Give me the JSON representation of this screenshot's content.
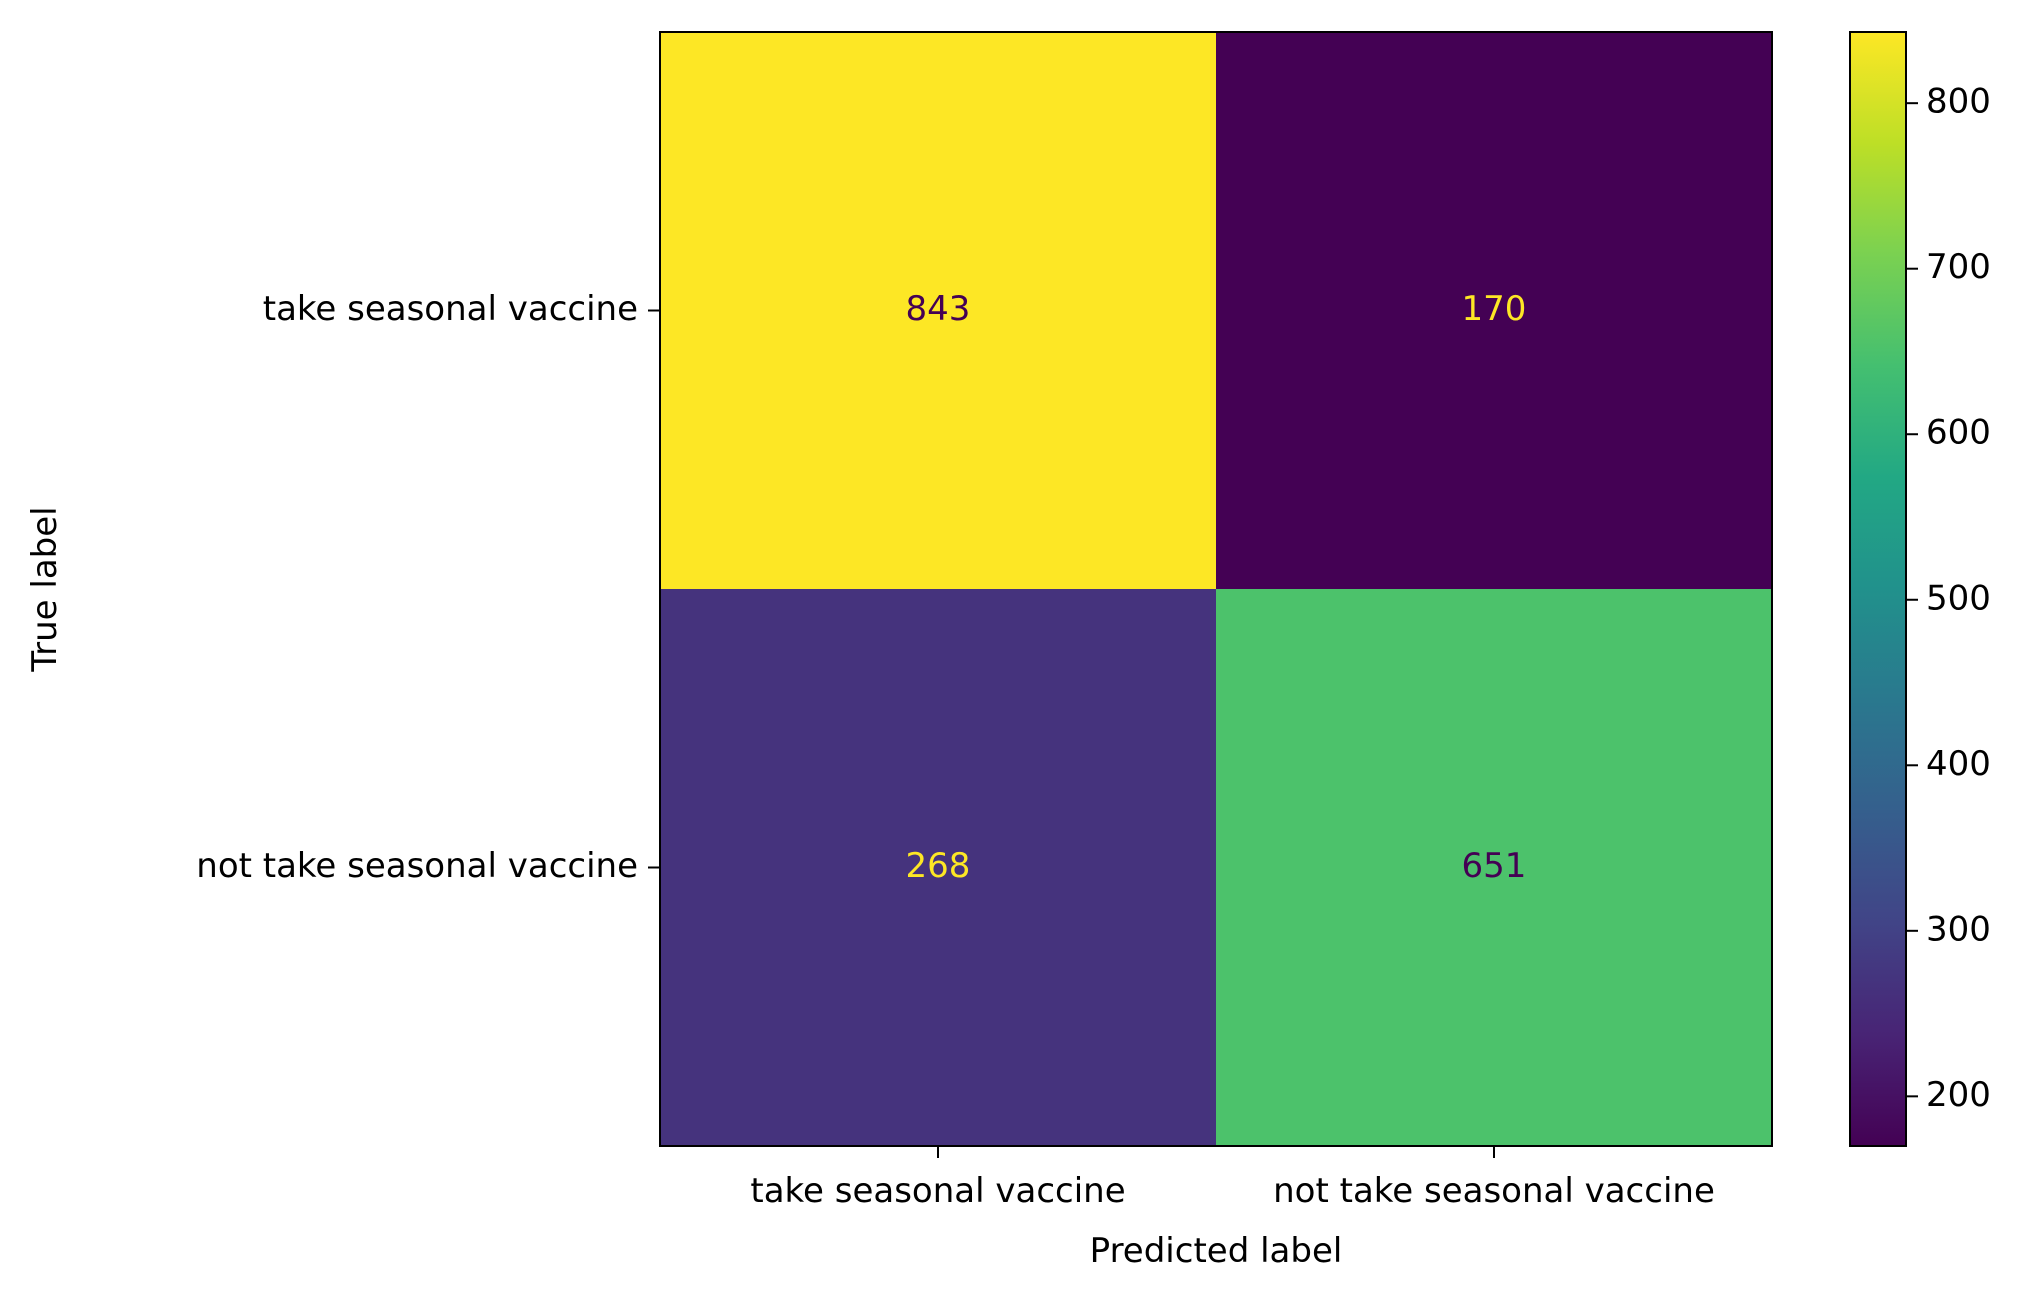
{
  "chart_data": {
    "type": "heatmap",
    "subtype": "confusion-matrix",
    "title": "",
    "xlabel": "Predicted label",
    "ylabel": "True label",
    "x_categories": [
      "take seasonal vaccine",
      "not take seasonal vaccine"
    ],
    "y_categories": [
      "take seasonal vaccine",
      "not take seasonal vaccine"
    ],
    "values": [
      [
        843,
        170
      ],
      [
        268,
        651
      ]
    ],
    "colormap": "viridis",
    "colorbar": {
      "min": 170,
      "max": 843,
      "ticks": [
        200,
        300,
        400,
        500,
        600,
        700,
        800
      ]
    },
    "text_colors": {
      "on_light": "#440154",
      "on_dark": "#fde725"
    },
    "grid": false,
    "legend": "none"
  }
}
